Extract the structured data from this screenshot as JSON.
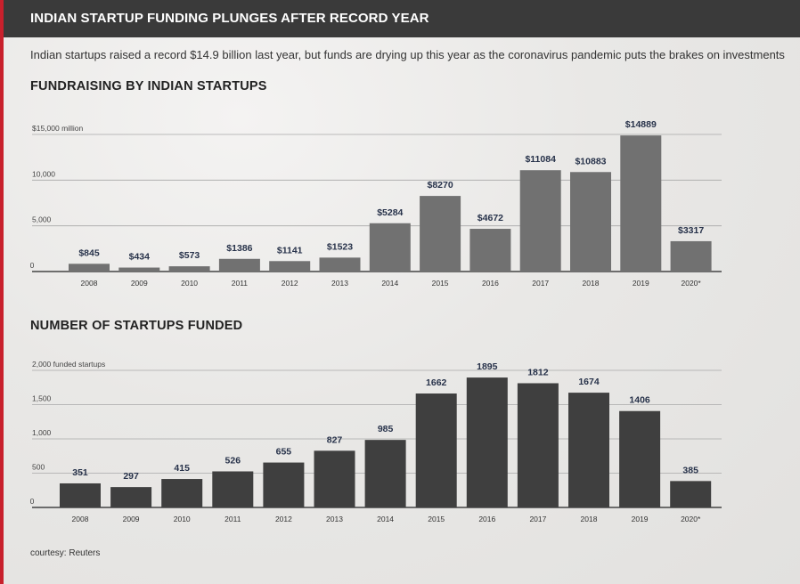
{
  "header": {
    "title": "INDIAN STARTUP FUNDING PLUNGES AFTER RECORD YEAR"
  },
  "subtitle": "Indian startups raised a record $14.9 billion last year, but funds are drying up this year as the coronavirus pandemic puts the brakes on investments",
  "courtesy": "courtesy: Reuters",
  "colors": {
    "header_bg": "#3a3a3a",
    "accent_red": "#c8202c",
    "bar_funding": "#717171",
    "bar_count": "#3f3f3f"
  },
  "chart_data": [
    {
      "type": "bar",
      "title": "FUNDRAISING BY INDIAN STARTUPS",
      "categories": [
        "2008",
        "2009",
        "2010",
        "2011",
        "2012",
        "2013",
        "2014",
        "2015",
        "2016",
        "2017",
        "2018",
        "2019",
        "2020*"
      ],
      "values": [
        845,
        434,
        573,
        1386,
        1141,
        1523,
        5284,
        8270,
        4672,
        11084,
        10883,
        14889,
        3317
      ],
      "value_labels": [
        "$845",
        "$434",
        "$573",
        "$1386",
        "$1141",
        "$1523",
        "$5284",
        "$8270",
        "$4672",
        "$11084",
        "$10883",
        "$14889",
        "$3317"
      ],
      "ytick_values": [
        0,
        5000,
        10000,
        15000
      ],
      "ytick_labels": [
        "0",
        "5,000",
        "10,000",
        "$15,000 million"
      ],
      "ylim": [
        0,
        15000
      ],
      "grid": true
    },
    {
      "type": "bar",
      "title": "NUMBER OF STARTUPS FUNDED",
      "categories": [
        "2008",
        "2009",
        "2010",
        "2011",
        "2012",
        "2013",
        "2014",
        "2015",
        "2016",
        "2017",
        "2018",
        "2019",
        "2020*"
      ],
      "values": [
        351,
        297,
        415,
        526,
        655,
        827,
        985,
        1662,
        1895,
        1812,
        1674,
        1406,
        385
      ],
      "value_labels": [
        "351",
        "297",
        "415",
        "526",
        "655",
        "827",
        "985",
        "1662",
        "1895",
        "1812",
        "1674",
        "1406",
        "385"
      ],
      "ytick_values": [
        0,
        500,
        1000,
        1500,
        2000
      ],
      "ytick_labels": [
        "0",
        "500",
        "1,000",
        "1,500",
        "2,000 funded startups"
      ],
      "ylim": [
        0,
        2000
      ],
      "grid": true
    }
  ]
}
